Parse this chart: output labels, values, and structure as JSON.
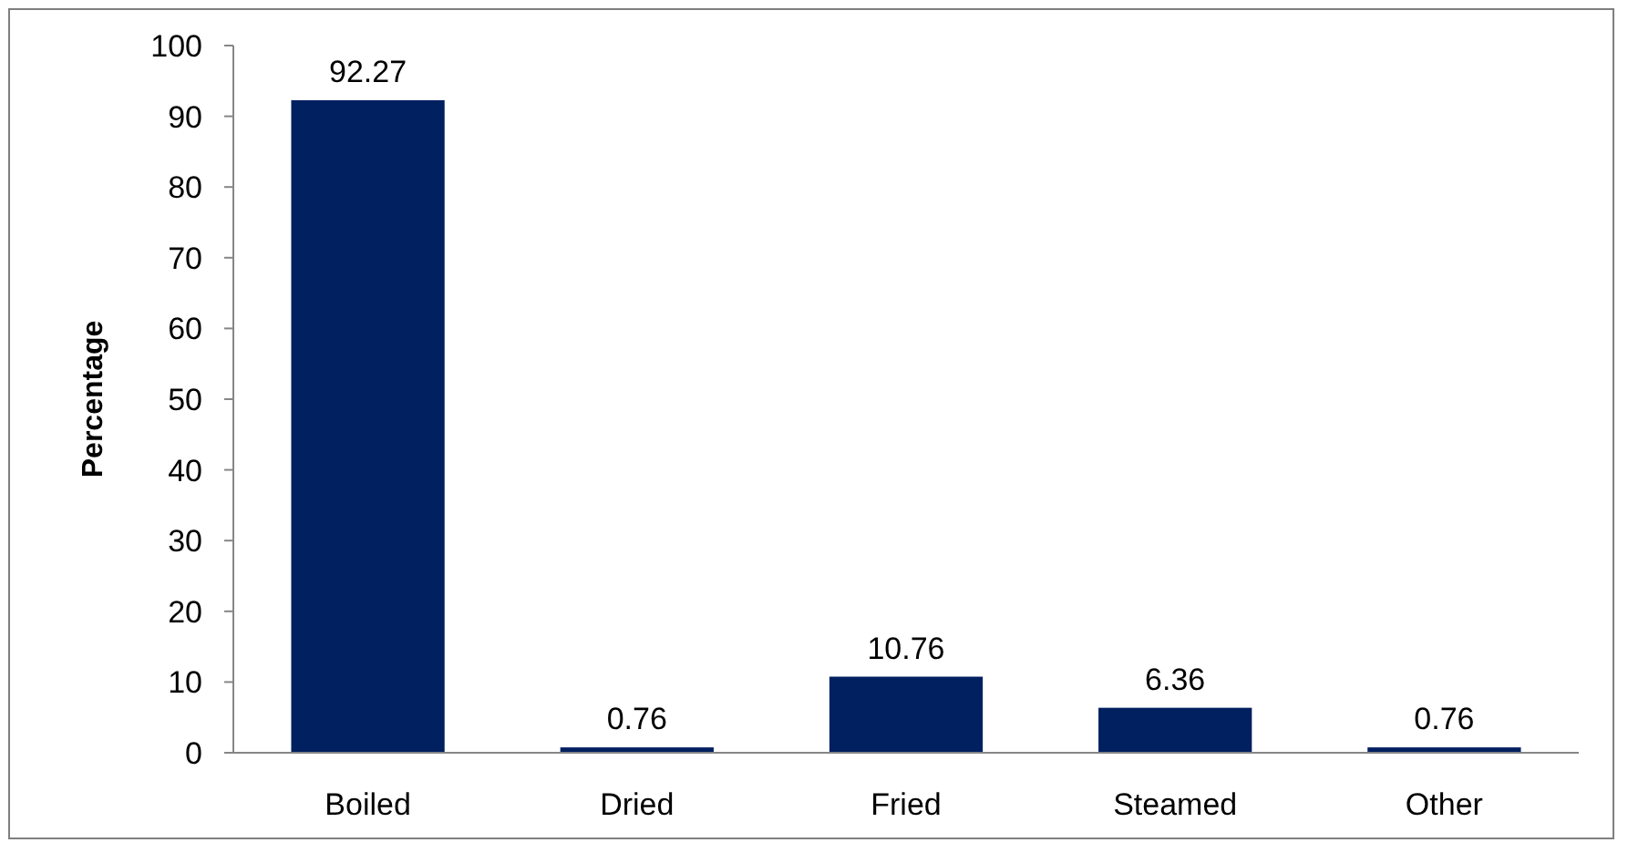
{
  "chart_data": {
    "type": "bar",
    "ylabel": "Percentage",
    "categories": [
      "Boiled",
      "Dried",
      "Fried",
      "Steamed",
      "Other"
    ],
    "values": [
      92.27,
      0.76,
      10.76,
      6.36,
      0.76
    ],
    "color": "#002060",
    "ylim": [
      0,
      100
    ],
    "yticks": [
      0,
      10,
      20,
      30,
      40,
      50,
      60,
      70,
      80,
      90,
      100
    ],
    "grid": false,
    "data_labels": true
  }
}
